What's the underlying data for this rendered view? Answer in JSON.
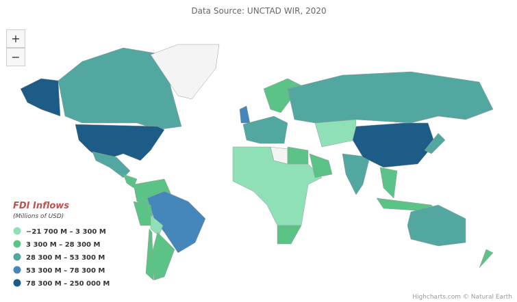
{
  "subtitle": "Data Source: UNCTAD WIR, 2020",
  "zoom": {
    "in": "+",
    "out": "−"
  },
  "legend": {
    "title": "FDI Inflows",
    "subtitle": "(Millions of USD)",
    "items": [
      {
        "label": "−21 700 M – 3 300 M",
        "color": "#8fe0b6"
      },
      {
        "label": "3 300 M – 28 300 M",
        "color": "#5cc387"
      },
      {
        "label": "28 300 M – 53 300 M",
        "color": "#52a8a0"
      },
      {
        "label": "53 300 M – 78 300 M",
        "color": "#4587bb"
      },
      {
        "label": "78 300 M – 250 000 M",
        "color": "#1e5c88"
      }
    ]
  },
  "credits": "Highcharts.com © Natural Earth"
}
